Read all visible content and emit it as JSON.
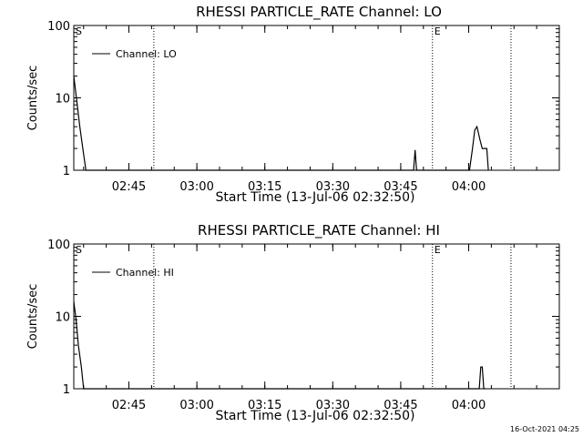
{
  "chart_data": [
    {
      "type": "line",
      "title": "RHESSI PARTICLE_RATE Channel: LO",
      "xlabel": "Start Time (13-Jul-06 02:32:50)",
      "ylabel": "Counts/sec",
      "yscale": "log",
      "ylim": [
        1,
        100
      ],
      "xlim": [
        "02:32:50",
        "04:20:00"
      ],
      "x_ticks": [
        "02:45",
        "03:00",
        "03:15",
        "03:30",
        "03:45",
        "04:00"
      ],
      "y_ticks": [
        "1",
        "10",
        "100"
      ],
      "legend": {
        "position": "top-left",
        "label": "Channel: LO"
      },
      "markers": [
        {
          "label": "S",
          "time": "02:32:50",
          "style": "dashed"
        },
        {
          "label": "",
          "time": "02:50:30",
          "style": "dotted"
        },
        {
          "label": "E",
          "time": "03:52:00",
          "style": "dotted"
        },
        {
          "label": "",
          "time": "04:09:20",
          "style": "dotted"
        }
      ],
      "series": [
        {
          "name": "Channel: LO",
          "x": [
            "02:32:50",
            "02:33:30",
            "02:34:10",
            "02:34:50",
            "02:35:30",
            "02:36:00",
            "02:36:10",
            "03:47:50",
            "03:48:10",
            "03:48:30",
            "04:00:10",
            "04:00:50",
            "04:01:20",
            "04:01:50",
            "04:02:30",
            "04:03:00",
            "04:04:00",
            "04:04:20"
          ],
          "y": [
            20,
            9,
            4,
            2,
            1,
            1,
            1,
            1,
            1.9,
            1,
            1,
            2,
            3.6,
            4,
            2.6,
            2,
            2,
            1
          ]
        }
      ]
    },
    {
      "type": "line",
      "title": "RHESSI PARTICLE_RATE Channel: HI",
      "xlabel": "Start Time (13-Jul-06 02:32:50)",
      "ylabel": "Counts/sec",
      "yscale": "log",
      "ylim": [
        1,
        100
      ],
      "xlim": [
        "02:32:50",
        "04:20:00"
      ],
      "x_ticks": [
        "02:45",
        "03:00",
        "03:15",
        "03:30",
        "03:45",
        "04:00"
      ],
      "y_ticks": [
        "1",
        "10",
        "100"
      ],
      "legend": {
        "position": "top-left",
        "label": "Channel: HI"
      },
      "markers": [
        {
          "label": "S",
          "time": "02:32:50",
          "style": "dashed"
        },
        {
          "label": "",
          "time": "02:50:30",
          "style": "dotted"
        },
        {
          "label": "E",
          "time": "03:52:00",
          "style": "dotted"
        },
        {
          "label": "",
          "time": "04:09:20",
          "style": "dotted"
        }
      ],
      "series": [
        {
          "name": "Channel: HI",
          "x": [
            "02:32:50",
            "02:33:20",
            "02:33:50",
            "02:34:30",
            "02:35:00",
            "02:35:10",
            "04:02:20",
            "04:02:40",
            "04:03:00",
            "04:03:20",
            "04:03:40"
          ],
          "y": [
            16,
            9,
            4,
            2,
            1,
            1,
            1,
            2,
            2,
            1,
            1
          ]
        }
      ]
    }
  ],
  "timestamp": "16-Oct-2021 04:25"
}
